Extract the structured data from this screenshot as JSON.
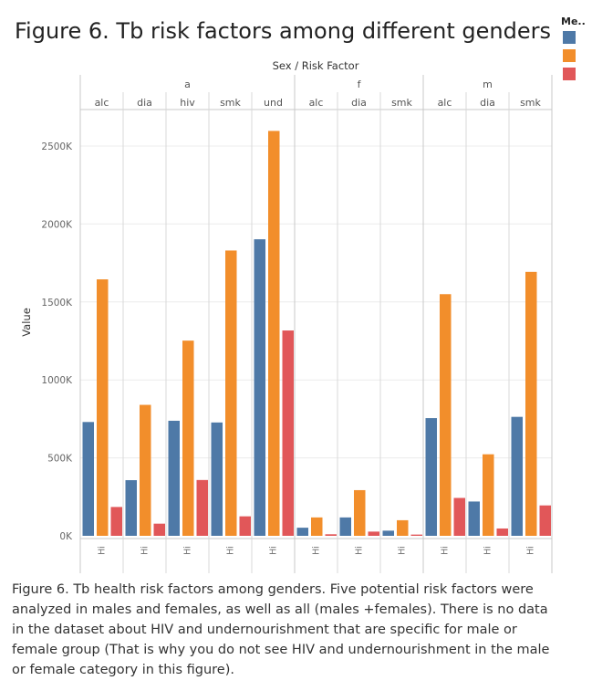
{
  "title": "Figure 6. Tb risk factors among different genders",
  "caption": "Figure 6. Tb health risk factors among genders. Five potential risk factors were analyzed in males and females, as well as all (males +females). There is no data in the dataset about HIV and undernourishment that are specific for male or female group (That is why you do not see HIV and undernourishment in the male or female category in this figure).",
  "legend": {
    "title": "Me..",
    "colors": [
      "#4e79a7",
      "#f28e2b",
      "#e15759"
    ]
  },
  "chart_data": {
    "type": "bar",
    "header_title": "Sex / Risk Factor",
    "ylabel": "Value",
    "ylim": [
      -50000,
      2800000
    ],
    "yticks": [
      0,
      500000,
      1000000,
      1500000,
      2000000,
      2500000
    ],
    "ytick_labels": [
      "0K",
      "500K",
      "1000K",
      "1500K",
      "2000K",
      "2500K"
    ],
    "bar_label": "Hi",
    "series_colors": [
      "#4e79a7",
      "#f28e2b",
      "#e15759"
    ],
    "groups": [
      {
        "sex": "a",
        "factors": [
          {
            "name": "alc",
            "values": [
              730000,
              1645000,
              185000
            ]
          },
          {
            "name": "dia",
            "values": [
              357000,
              840000,
              78000
            ]
          },
          {
            "name": "hiv",
            "values": [
              738000,
              1252000,
              358000
            ]
          },
          {
            "name": "smk",
            "values": [
              727000,
              1830000,
              125000
            ]
          },
          {
            "name": "und",
            "values": [
              1902000,
              2597000,
              1317000
            ]
          }
        ]
      },
      {
        "sex": "f",
        "factors": [
          {
            "name": "alc",
            "values": [
              52000,
              118000,
              10000
            ]
          },
          {
            "name": "dia",
            "values": [
              118000,
              293000,
              27000
            ]
          },
          {
            "name": "smk",
            "values": [
              33000,
              100000,
              8000
            ]
          }
        ]
      },
      {
        "sex": "m",
        "factors": [
          {
            "name": "alc",
            "values": [
              755000,
              1550000,
              243000
            ]
          },
          {
            "name": "dia",
            "values": [
              220000,
              523000,
              47000
            ]
          },
          {
            "name": "smk",
            "values": [
              763000,
              1693000,
              195000
            ]
          }
        ]
      }
    ]
  }
}
